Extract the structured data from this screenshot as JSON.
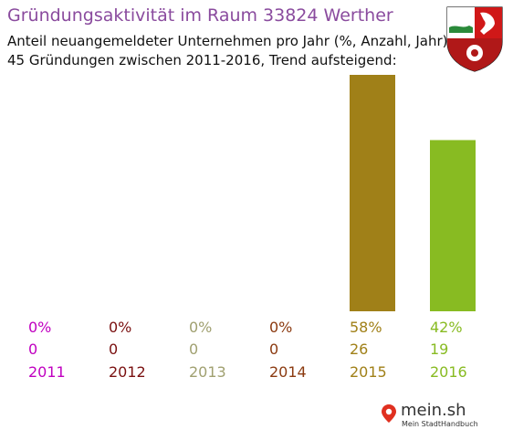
{
  "header": {
    "title": "Gründungsaktivität im Raum 33824 Werther",
    "subtitle_line1": "Anteil neuangemeldeter Unternehmen pro Jahr (%, Anzahl, Jahr)",
    "subtitle_line2": "45 Gründungen zwischen 2011-2016, Trend aufsteigend:"
  },
  "crest": {
    "icon": "nrw-coat-of-arms-icon"
  },
  "logo": {
    "brand": "mein.sh",
    "tagline": "Mein StadtHandbuch"
  },
  "chart_data": {
    "type": "bar",
    "title": "Gründungsaktivität im Raum 33824 Werther",
    "categories": [
      "2011",
      "2012",
      "2013",
      "2014",
      "2015",
      "2016"
    ],
    "percent_labels": [
      "0%",
      "0%",
      "0%",
      "0%",
      "58%",
      "42%"
    ],
    "percent_values": [
      0,
      0,
      0,
      0,
      58,
      42
    ],
    "counts": [
      0,
      0,
      0,
      0,
      26,
      19
    ],
    "colors": [
      "#c000c0",
      "#7a1010",
      "#a0a070",
      "#8b3a10",
      "#a08018",
      "#88bb22"
    ],
    "xlabel": "",
    "ylabel": "",
    "ylim": [
      0,
      58
    ],
    "grid": false
  }
}
